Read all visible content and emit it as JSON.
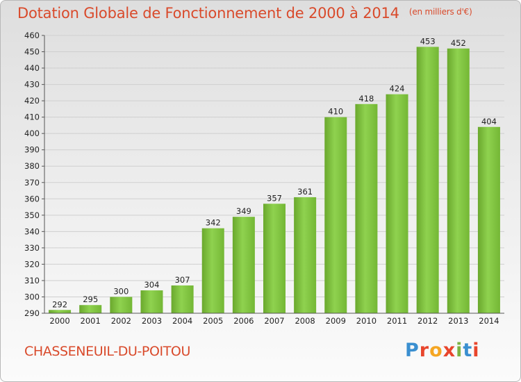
{
  "chart_data": {
    "type": "bar",
    "title": "Dotation Globale de Fonctionnement de 2000 à 2014",
    "subtitle": "(en milliers d'€)",
    "categories": [
      "2000",
      "2001",
      "2002",
      "2003",
      "2004",
      "2005",
      "2006",
      "2007",
      "2008",
      "2009",
      "2010",
      "2011",
      "2012",
      "2013",
      "2014"
    ],
    "values": [
      292,
      295,
      300,
      304,
      307,
      342,
      349,
      357,
      361,
      410,
      418,
      424,
      453,
      452,
      404
    ],
    "ylim": [
      290,
      460
    ],
    "yticks": [
      290,
      300,
      310,
      320,
      330,
      340,
      350,
      360,
      370,
      380,
      390,
      400,
      410,
      420,
      430,
      440,
      450,
      460
    ],
    "grid": true,
    "bar_color": "#7cc241"
  },
  "footer": {
    "city": "CHASSENEUIL-DU-POITOU",
    "logo_letters": [
      "P",
      "r",
      "o",
      "x",
      "i",
      "t",
      "i"
    ],
    "logo_colors": [
      "#3a8fd0",
      "#e8452c",
      "#f5a623",
      "#e8452c",
      "#7cb342",
      "#3a8fd0",
      "#e8452c"
    ]
  }
}
